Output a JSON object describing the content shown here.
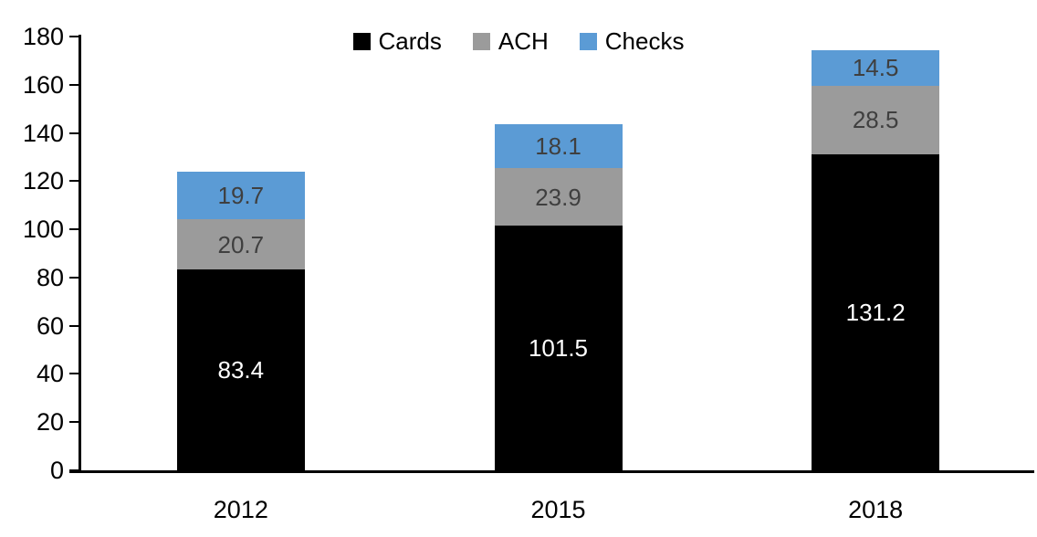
{
  "chart_data": {
    "type": "bar",
    "subtype": "stacked",
    "title": "",
    "xlabel": "",
    "ylabel": "",
    "categories": [
      "2012",
      "2015",
      "2018"
    ],
    "series": [
      {
        "name": "Cards",
        "values": [
          83.4,
          101.5,
          131.2
        ],
        "color": "#000000",
        "label_color": "#ffffff"
      },
      {
        "name": "ACH",
        "values": [
          20.7,
          23.9,
          28.5
        ],
        "color": "#9b9b9b",
        "label_color": "#3f3f3f"
      },
      {
        "name": "Checks",
        "values": [
          19.7,
          18.1,
          14.5
        ],
        "color": "#5b9bd5",
        "label_color": "#3f3f3f"
      }
    ],
    "stack_order_bottom_to_top": [
      "Cards",
      "ACH",
      "Checks"
    ],
    "ylim": [
      0,
      180
    ],
    "ytick_step": 20,
    "ytick_labels": [
      "0",
      "20",
      "40",
      "60",
      "80",
      "100",
      "120",
      "140",
      "160",
      "180"
    ],
    "grid": false,
    "legend_position": "top-center",
    "legend": [
      "Cards",
      "ACH",
      "Checks"
    ],
    "axis_color": "#000000"
  }
}
